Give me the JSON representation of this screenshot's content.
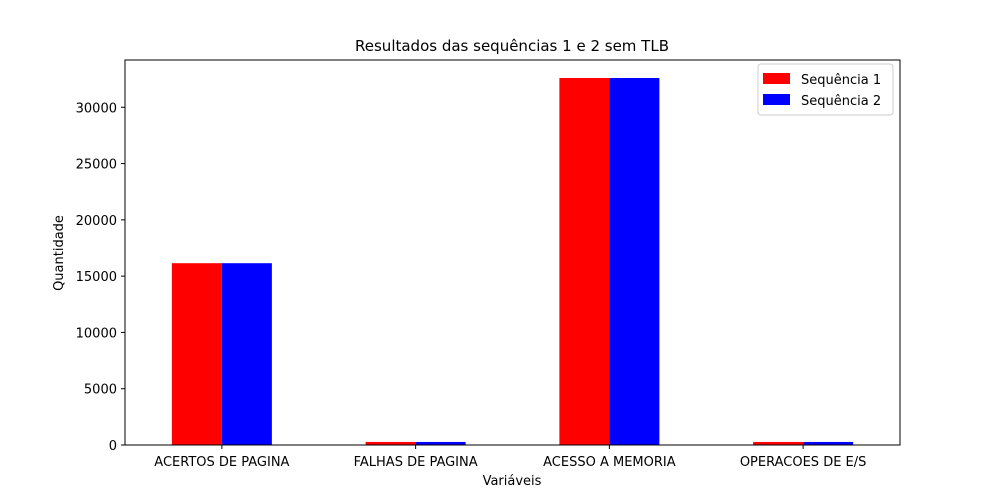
{
  "chart_data": {
    "type": "bar",
    "title": "Resultados das sequências 1 e 2 sem TLB",
    "xlabel": "Variáveis",
    "ylabel": "Quantidade",
    "categories": [
      "ACERTOS DE PAGINA",
      "FALHAS DE PAGINA",
      "ACESSO A MEMORIA",
      "OPERACOES DE E/S"
    ],
    "series": [
      {
        "name": "Sequência 1",
        "color": "#ff0000",
        "values": [
          16150,
          270,
          32600,
          270
        ]
      },
      {
        "name": "Sequência 2",
        "color": "#0000ff",
        "values": [
          16150,
          270,
          32600,
          270
        ]
      }
    ],
    "ylim": [
      0,
      34200
    ],
    "yticks": [
      0,
      5000,
      10000,
      15000,
      20000,
      25000,
      30000
    ],
    "grid": false,
    "legend": "top-right"
  }
}
